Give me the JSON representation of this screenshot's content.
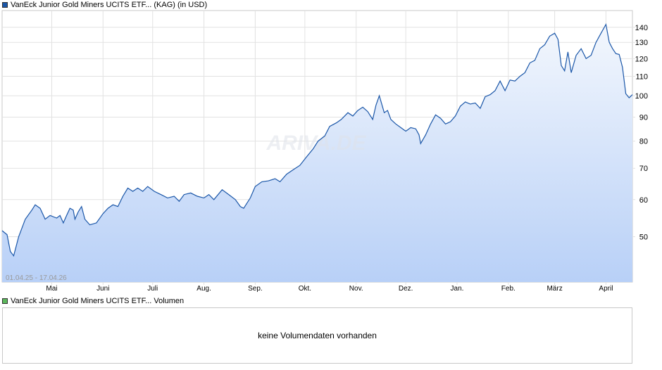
{
  "price_panel": {
    "legend": "VanEck Junior Gold Miners UCITS ETF... (KAG) (in USD)",
    "color": "#1a56a8",
    "date_range": "01.04.25 - 17.04.26",
    "watermark": "ARIVA.DE"
  },
  "volume_panel": {
    "legend": "VanEck Junior Gold Miners UCITS ETF... Volumen",
    "color": "#5cb85c",
    "message": "keine Volumendaten vorhanden"
  },
  "chart_data": {
    "type": "area",
    "title": "VanEck Junior Gold Miners UCITS ETF... (KAG) (in USD)",
    "xlabel": "",
    "ylabel": "",
    "y_scale": "log",
    "ylim": [
      40,
      152
    ],
    "y_ticks": [
      50,
      60,
      70,
      80,
      90,
      100,
      110,
      120,
      130,
      140
    ],
    "x_ticks": [
      {
        "label": "Mai",
        "date": "2025-05-01"
      },
      {
        "label": "Juni",
        "date": "2025-06-01"
      },
      {
        "label": "Juli",
        "date": "2025-07-01"
      },
      {
        "label": "Aug.",
        "date": "2025-08-01"
      },
      {
        "label": "Sep.",
        "date": "2025-09-01"
      },
      {
        "label": "Okt.",
        "date": "2025-10-01"
      },
      {
        "label": "Nov.",
        "date": "2025-11-01"
      },
      {
        "label": "Dez.",
        "date": "2025-12-01"
      },
      {
        "label": "Jan.",
        "date": "2026-01-01"
      },
      {
        "label": "Feb.",
        "date": "2026-02-01"
      },
      {
        "label": "März",
        "date": "2026-03-01"
      },
      {
        "label": "April",
        "date": "2026-04-01"
      }
    ],
    "x_range": [
      "2025-04-01",
      "2026-04-17"
    ],
    "grid": true,
    "series": [
      {
        "name": "",
        "points": [
          [
            "2025-04-01",
            51.5
          ],
          [
            "2025-04-04",
            50.5
          ],
          [
            "2025-04-06",
            46.5
          ],
          [
            "2025-04-08",
            45.5
          ],
          [
            "2025-04-11",
            50.0
          ],
          [
            "2025-04-15",
            54.5
          ],
          [
            "2025-04-19",
            57.0
          ],
          [
            "2025-04-21",
            58.5
          ],
          [
            "2025-04-24",
            57.5
          ],
          [
            "2025-04-27",
            54.5
          ],
          [
            "2025-04-30",
            55.5
          ],
          [
            "2025-05-04",
            54.8
          ],
          [
            "2025-05-06",
            55.5
          ],
          [
            "2025-05-08",
            53.5
          ],
          [
            "2025-05-10",
            55.5
          ],
          [
            "2025-05-12",
            57.5
          ],
          [
            "2025-05-14",
            57.0
          ],
          [
            "2025-05-15",
            54.5
          ],
          [
            "2025-05-17",
            56.5
          ],
          [
            "2025-05-19",
            58.0
          ],
          [
            "2025-05-21",
            54.5
          ],
          [
            "2025-05-24",
            53.0
          ],
          [
            "2025-05-28",
            53.5
          ],
          [
            "2025-06-01",
            56.0
          ],
          [
            "2025-06-04",
            57.5
          ],
          [
            "2025-06-07",
            58.5
          ],
          [
            "2025-06-10",
            58.0
          ],
          [
            "2025-06-13",
            61.0
          ],
          [
            "2025-06-16",
            63.5
          ],
          [
            "2025-06-19",
            62.5
          ],
          [
            "2025-06-22",
            63.5
          ],
          [
            "2025-06-25",
            62.5
          ],
          [
            "2025-06-28",
            64.0
          ],
          [
            "2025-07-02",
            62.5
          ],
          [
            "2025-07-06",
            61.5
          ],
          [
            "2025-07-10",
            60.5
          ],
          [
            "2025-07-14",
            61.0
          ],
          [
            "2025-07-17",
            59.5
          ],
          [
            "2025-07-20",
            61.5
          ],
          [
            "2025-07-24",
            62.0
          ],
          [
            "2025-07-28",
            61.0
          ],
          [
            "2025-08-01",
            60.5
          ],
          [
            "2025-08-04",
            61.5
          ],
          [
            "2025-08-07",
            60.0
          ],
          [
            "2025-08-12",
            63.0
          ],
          [
            "2025-08-16",
            61.5
          ],
          [
            "2025-08-20",
            60.0
          ],
          [
            "2025-08-23",
            58.0
          ],
          [
            "2025-08-25",
            57.5
          ],
          [
            "2025-08-29",
            60.5
          ],
          [
            "2025-09-01",
            64.0
          ],
          [
            "2025-09-05",
            65.5
          ],
          [
            "2025-09-09",
            65.8
          ],
          [
            "2025-09-13",
            66.5
          ],
          [
            "2025-09-16",
            65.5
          ],
          [
            "2025-09-20",
            68.0
          ],
          [
            "2025-09-24",
            69.5
          ],
          [
            "2025-09-28",
            71.0
          ],
          [
            "2025-10-02",
            74.0
          ],
          [
            "2025-10-06",
            77.0
          ],
          [
            "2025-10-09",
            80.0
          ],
          [
            "2025-10-13",
            82.0
          ],
          [
            "2025-10-16",
            86.0
          ],
          [
            "2025-10-20",
            87.5
          ],
          [
            "2025-10-23",
            89.0
          ],
          [
            "2025-10-27",
            92.0
          ],
          [
            "2025-10-30",
            90.5
          ],
          [
            "2025-11-02",
            93.0
          ],
          [
            "2025-11-05",
            94.5
          ],
          [
            "2025-11-08",
            92.5
          ],
          [
            "2025-11-11",
            89.0
          ],
          [
            "2025-11-13",
            95.5
          ],
          [
            "2025-11-15",
            100.0
          ],
          [
            "2025-11-18",
            92.0
          ],
          [
            "2025-11-20",
            93.0
          ],
          [
            "2025-11-22",
            89.0
          ],
          [
            "2025-11-25",
            87.0
          ],
          [
            "2025-11-28",
            85.5
          ],
          [
            "2025-12-01",
            84.0
          ],
          [
            "2025-12-04",
            85.5
          ],
          [
            "2025-12-07",
            85.0
          ],
          [
            "2025-12-09",
            82.5
          ],
          [
            "2025-12-10",
            79.0
          ],
          [
            "2025-12-13",
            82.5
          ],
          [
            "2025-12-16",
            87.0
          ],
          [
            "2025-12-19",
            91.0
          ],
          [
            "2025-12-22",
            89.5
          ],
          [
            "2025-12-25",
            87.0
          ],
          [
            "2025-12-28",
            88.0
          ],
          [
            "2025-12-31",
            90.5
          ],
          [
            "2026-01-03",
            95.0
          ],
          [
            "2026-01-06",
            97.0
          ],
          [
            "2026-01-09",
            96.0
          ],
          [
            "2026-01-12",
            96.5
          ],
          [
            "2026-01-15",
            94.0
          ],
          [
            "2026-01-18",
            99.5
          ],
          [
            "2026-01-21",
            100.5
          ],
          [
            "2026-01-24",
            102.5
          ],
          [
            "2026-01-27",
            107.5
          ],
          [
            "2026-01-30",
            102.5
          ],
          [
            "2026-02-02",
            108.0
          ],
          [
            "2026-02-05",
            107.5
          ],
          [
            "2026-02-08",
            110.0
          ],
          [
            "2026-02-11",
            112.0
          ],
          [
            "2026-02-14",
            117.5
          ],
          [
            "2026-02-17",
            119.0
          ],
          [
            "2026-02-20",
            126.0
          ],
          [
            "2026-02-23",
            128.5
          ],
          [
            "2026-02-26",
            134.0
          ],
          [
            "2026-03-01",
            136.0
          ],
          [
            "2026-03-03",
            132.0
          ],
          [
            "2026-03-05",
            116.0
          ],
          [
            "2026-03-07",
            113.0
          ],
          [
            "2026-03-09",
            124.0
          ],
          [
            "2026-03-11",
            112.0
          ],
          [
            "2026-03-14",
            122.0
          ],
          [
            "2026-03-17",
            126.0
          ],
          [
            "2026-03-20",
            120.0
          ],
          [
            "2026-03-23",
            122.0
          ],
          [
            "2026-03-26",
            130.0
          ],
          [
            "2026-03-29",
            136.0
          ],
          [
            "2026-04-01",
            142.0
          ],
          [
            "2026-04-03",
            130.0
          ],
          [
            "2026-04-05",
            126.0
          ],
          [
            "2026-04-07",
            123.0
          ],
          [
            "2026-04-09",
            122.5
          ],
          [
            "2026-04-11",
            115.0
          ],
          [
            "2026-04-13",
            101.0
          ],
          [
            "2026-04-15",
            99.0
          ],
          [
            "2026-04-17",
            100.5
          ]
        ]
      }
    ]
  }
}
